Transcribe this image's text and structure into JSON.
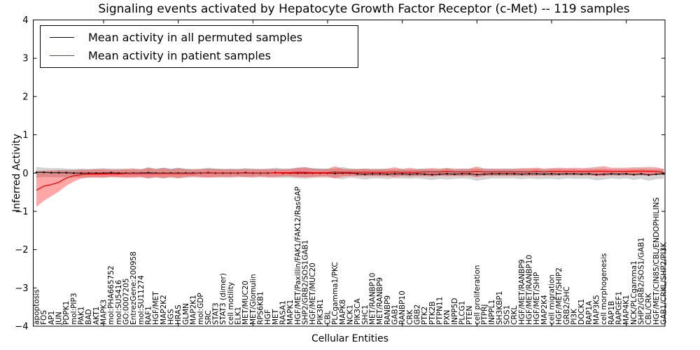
{
  "figure": {
    "title": "Signaling events activated by Hepatocyte Growth Factor Receptor (c-Met) -- 119 samples",
    "xlabel": "Cellular Entities",
    "ylabel": "Inferred Activity"
  },
  "legend": {
    "items": [
      {
        "label": "Mean activity in all permuted samples",
        "color": "#000000"
      },
      {
        "label": "Mean activity in patient samples",
        "color": "#ff0000"
      }
    ]
  },
  "chart_data": {
    "type": "line",
    "title": "Signaling events activated by Hepatocyte Growth Factor Receptor (c-Met) -- 119 samples",
    "xlabel": "Cellular Entities",
    "ylabel": "Inferred Activity",
    "ylim": [
      -4,
      4
    ],
    "yticks": [
      -4,
      -3,
      -2,
      -1,
      0,
      1,
      2,
      3,
      4
    ],
    "xtick_every": 10,
    "grid": false,
    "legend_position": "upper left",
    "categories": [
      "apoptosis",
      "FOS",
      "AP1",
      "JUN",
      "PDPK1",
      "mol:PIP3",
      "PAK1",
      "BAD",
      "AKT1",
      "MAPK3",
      "mol:PHA665752",
      "mol:SU5416",
      "GO:0007205",
      "EntrezGene:200958",
      "mol:SU11274",
      "RAF1",
      "HGF/MET",
      "MAP2K2",
      "HGS",
      "HRAS",
      "GLMN",
      "MAP2K1",
      "mol:GDP",
      "SRC",
      "STAT3",
      "STAT3 (dimer)",
      "cell motility",
      "ELK1",
      "MET/MUC20",
      "MET/Glomulin",
      "RPS6KB1",
      "HGF",
      "MET",
      "RASA1",
      "MAPK1",
      "HGF/MET/Paxillin/FAK1/FAK12/RasGAP",
      "SHP2/GRB2/SOS1GAB1",
      "HGF/MET/MUC20",
      "PIK3R1",
      "CBL",
      "PLCgamma1/PKC",
      "MAPK8",
      "NCK1",
      "PIK3CA",
      "SHC1",
      "MET/RANBP10",
      "MET/RANBP9",
      "RANBP9",
      "GAB1",
      "RANBP10",
      "CRK",
      "GRB2",
      "PTK2",
      "PTK2B",
      "PTPN11",
      "PXN",
      "INPP5D",
      "PLCG1",
      "PTEN",
      "cell proliferation",
      "PTPRJ",
      "INPPL1",
      "SH3KBP1",
      "SOS1",
      "CRKL",
      "HGF/MET/RANBP9",
      "HGF/MET/RANBP10",
      "HGF/MET/SHIP",
      "MAP2K4",
      "cell migration",
      "HGF/MET/SHIP2",
      "GRB2/SHC",
      "PI3K",
      "DOCK1",
      "RAP1A",
      "MAP3K5",
      "cell morphogenesis",
      "RAP1B",
      "RAPGEF1",
      "MAP4K1",
      "NCK/PLCgamma1",
      "SHP2/GRB2/SOS1/GAB1",
      "CBL/CRK",
      "HGF/MET/CIN85/CBL/ENDOPHILINS",
      "GAB1/CRKL/SHP2/PI3K"
    ],
    "series": [
      {
        "name": "Mean activity in all permuted samples",
        "color": "#000000",
        "marker": "dot",
        "band_color": "rgba(130,130,130,0.35)",
        "values": [
          0.02,
          0.02,
          0.01,
          0.01,
          0.01,
          0,
          0,
          0,
          0,
          0,
          0.01,
          0,
          0,
          0,
          0,
          0.01,
          0,
          0,
          0,
          0,
          0,
          0,
          0,
          0.01,
          0,
          0,
          0,
          0,
          0.01,
          0,
          0,
          0,
          0.01,
          0,
          0,
          0,
          0,
          0,
          0,
          0,
          -0.01,
          0,
          0,
          -0.02,
          -0.03,
          -0.02,
          -0.02,
          -0.03,
          -0.02,
          -0.02,
          -0.03,
          -0.02,
          -0.03,
          -0.04,
          -0.03,
          -0.02,
          -0.03,
          -0.02,
          -0.02,
          -0.04,
          -0.03,
          -0.02,
          -0.02,
          -0.02,
          -0.02,
          -0.03,
          -0.02,
          -0.02,
          -0.03,
          -0.02,
          -0.03,
          -0.02,
          -0.02,
          -0.03,
          -0.02,
          -0.04,
          -0.03,
          -0.02,
          -0.03,
          -0.02,
          -0.04,
          -0.02,
          -0.05,
          -0.03,
          -0.02
        ],
        "band_upper": [
          0.16,
          0.14,
          0.13,
          0.13,
          0.12,
          0.11,
          0.12,
          0.11,
          0.12,
          0.13,
          0.12,
          0.12,
          0.12,
          0.13,
          0.11,
          0.15,
          0.12,
          0.14,
          0.12,
          0.14,
          0.12,
          0.11,
          0.12,
          0.14,
          0.12,
          0.11,
          0.12,
          0.11,
          0.13,
          0.12,
          0.11,
          0.12,
          0.14,
          0.12,
          0.12,
          0.14,
          0.15,
          0.13,
          0.12,
          0.12,
          0.12,
          0.16,
          0.12,
          0.1,
          0.11,
          0.1,
          0.1,
          0.1,
          0.1,
          0.1,
          0.09,
          0.1,
          0.1,
          0.1,
          0.09,
          0.13,
          0.09,
          0.1,
          0.11,
          0.12,
          0.11,
          0.1,
          0.1,
          0.1,
          0.1,
          0.1,
          0.1,
          0.12,
          0.09,
          0.11,
          0.11,
          0.1,
          0.11,
          0.09,
          0.11,
          0.11,
          0.11,
          0.1,
          0.1,
          0.1,
          0.1,
          0.11,
          0.1,
          0.1,
          0.11
        ],
        "band_lower": [
          -0.12,
          -0.1,
          -0.11,
          -0.11,
          -0.1,
          -0.11,
          -0.12,
          -0.11,
          -0.12,
          -0.13,
          -0.1,
          -0.12,
          -0.12,
          -0.13,
          -0.11,
          -0.13,
          -0.12,
          -0.14,
          -0.12,
          -0.14,
          -0.12,
          -0.11,
          -0.12,
          -0.12,
          -0.12,
          -0.11,
          -0.12,
          -0.11,
          -0.11,
          -0.12,
          -0.11,
          -0.12,
          -0.12,
          -0.12,
          -0.12,
          -0.14,
          -0.15,
          -0.13,
          -0.12,
          -0.12,
          -0.14,
          -0.16,
          -0.12,
          -0.14,
          -0.17,
          -0.14,
          -0.14,
          -0.16,
          -0.14,
          -0.14,
          -0.15,
          -0.14,
          -0.16,
          -0.18,
          -0.15,
          -0.17,
          -0.15,
          -0.14,
          -0.15,
          -0.2,
          -0.17,
          -0.14,
          -0.14,
          -0.14,
          -0.14,
          -0.16,
          -0.14,
          -0.16,
          -0.15,
          -0.15,
          -0.17,
          -0.14,
          -0.15,
          -0.15,
          -0.15,
          -0.19,
          -0.17,
          -0.14,
          -0.16,
          -0.14,
          -0.18,
          -0.15,
          -0.2,
          -0.16,
          -0.15
        ]
      },
      {
        "name": "Mean activity in patient samples",
        "color": "#ff0000",
        "marker": "none",
        "band_color": "rgba(255,0,0,0.35)",
        "values": [
          -0.45,
          -0.34,
          -0.3,
          -0.24,
          -0.13,
          -0.07,
          -0.04,
          -0.03,
          -0.03,
          -0.02,
          -0.02,
          -0.02,
          -0.01,
          -0.01,
          -0.01,
          -0.01,
          -0.01,
          -0.01,
          -0.01,
          -0.01,
          -0.01,
          -0.01,
          0,
          0,
          0,
          0,
          0,
          0,
          0,
          0,
          0,
          0,
          0.01,
          0.01,
          0.01,
          0.02,
          0.02,
          0.01,
          0.01,
          0.01,
          0.03,
          0.02,
          0.02,
          0.02,
          0.02,
          0.02,
          0.02,
          0.02,
          0.03,
          0.02,
          0.02,
          0.02,
          0.03,
          0.03,
          0.03,
          0.04,
          0.03,
          0.03,
          0.03,
          0.04,
          0.03,
          0.03,
          0.03,
          0.03,
          0.03,
          0.03,
          0.03,
          0.04,
          0.03,
          0.04,
          0.04,
          0.04,
          0.04,
          0.04,
          0.04,
          0.05,
          0.05,
          0.04,
          0.04,
          0.04,
          0.05,
          0.05,
          0.05,
          0.04,
          0.02
        ],
        "band_upper": [
          0.05,
          0.06,
          0.07,
          0.08,
          0.08,
          0.08,
          0.09,
          0.09,
          0.1,
          0.1,
          0.09,
          0.09,
          0.1,
          0.1,
          0.09,
          0.14,
          0.1,
          0.14,
          0.1,
          0.13,
          0.1,
          0.09,
          0.1,
          0.12,
          0.11,
          0.1,
          0.1,
          0.1,
          0.11,
          0.1,
          0.1,
          0.1,
          0.11,
          0.1,
          0.11,
          0.14,
          0.15,
          0.12,
          0.11,
          0.11,
          0.18,
          0.11,
          0.11,
          0.11,
          0.12,
          0.11,
          0.11,
          0.12,
          0.15,
          0.11,
          0.14,
          0.11,
          0.12,
          0.13,
          0.12,
          0.13,
          0.12,
          0.12,
          0.12,
          0.17,
          0.12,
          0.12,
          0.12,
          0.12,
          0.12,
          0.13,
          0.13,
          0.14,
          0.12,
          0.13,
          0.14,
          0.13,
          0.14,
          0.13,
          0.14,
          0.16,
          0.18,
          0.14,
          0.14,
          0.14,
          0.15,
          0.15,
          0.16,
          0.15,
          0.11
        ],
        "band_lower": [
          -0.88,
          -0.72,
          -0.6,
          -0.48,
          -0.33,
          -0.22,
          -0.14,
          -0.12,
          -0.11,
          -0.11,
          -0.1,
          -0.1,
          -0.11,
          -0.1,
          -0.1,
          -0.14,
          -0.1,
          -0.13,
          -0.1,
          -0.13,
          -0.1,
          -0.09,
          -0.1,
          -0.11,
          -0.1,
          -0.1,
          -0.1,
          -0.09,
          -0.1,
          -0.1,
          -0.09,
          -0.1,
          -0.1,
          -0.09,
          -0.09,
          -0.1,
          -0.11,
          -0.1,
          -0.09,
          -0.09,
          -0.13,
          -0.09,
          -0.08,
          -0.08,
          -0.08,
          -0.08,
          -0.08,
          -0.08,
          -0.1,
          -0.08,
          -0.09,
          -0.08,
          -0.08,
          -0.09,
          -0.07,
          -0.08,
          -0.07,
          -0.08,
          -0.07,
          -0.11,
          -0.07,
          -0.07,
          -0.07,
          -0.07,
          -0.07,
          -0.07,
          -0.07,
          -0.07,
          -0.06,
          -0.07,
          -0.06,
          -0.06,
          -0.06,
          -0.06,
          -0.06,
          -0.07,
          -0.07,
          -0.06,
          -0.06,
          -0.06,
          -0.06,
          -0.06,
          -0.06,
          -0.05,
          -0.04
        ]
      }
    ]
  }
}
